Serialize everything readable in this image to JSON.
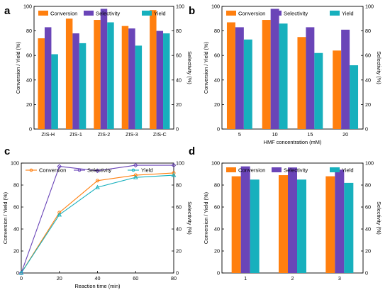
{
  "colors": {
    "conversion": "#ff7f0e",
    "selectivity": "#6a45b8",
    "yield": "#17b0bd"
  },
  "chart_data": [
    {
      "panel": "a",
      "type": "bar",
      "categories": [
        "ZIS-H",
        "ZIS-1",
        "ZIS-2",
        "ZIS-3",
        "ZIS-C"
      ],
      "series": [
        {
          "name": "Conversion",
          "values": [
            74,
            90,
            89,
            84,
            97
          ]
        },
        {
          "name": "Selectivity",
          "values": [
            83,
            78,
            98,
            82,
            80
          ]
        },
        {
          "name": "Yield",
          "values": [
            61,
            70,
            87,
            68,
            78
          ]
        }
      ],
      "xlabel": "",
      "ylabel": "Conversion / Yield (%)",
      "y2label": "Selectivity (%)",
      "ylim": [
        0,
        100
      ],
      "yticks": [
        0,
        20,
        40,
        60,
        80,
        100
      ],
      "legend": "top"
    },
    {
      "panel": "b",
      "type": "bar",
      "categories": [
        "5",
        "10",
        "15",
        "20"
      ],
      "series": [
        {
          "name": "Conversion",
          "values": [
            87,
            89,
            75,
            64
          ]
        },
        {
          "name": "Selectivity",
          "values": [
            83,
            98,
            83,
            81
          ]
        },
        {
          "name": "Yield",
          "values": [
            73,
            86,
            62,
            52
          ]
        }
      ],
      "xlabel": "HMF concentration (mM)",
      "ylabel": "Conversion / Yield (%)",
      "y2label": "Selectivity (%)",
      "ylim": [
        0,
        100
      ],
      "yticks": [
        0,
        20,
        40,
        60,
        80,
        100
      ],
      "legend": "top"
    },
    {
      "panel": "c",
      "type": "line",
      "x": [
        0,
        20,
        40,
        60,
        80
      ],
      "xticks": [
        0,
        20,
        40,
        60,
        80
      ],
      "xlim": [
        0,
        80
      ],
      "series": [
        {
          "name": "Conversion",
          "values": [
            0,
            55,
            84,
            89,
            91
          ]
        },
        {
          "name": "Selectivity",
          "values": [
            0,
            97,
            93,
            98,
            98
          ]
        },
        {
          "name": "Yield",
          "values": [
            0,
            53,
            78,
            87,
            89
          ]
        }
      ],
      "xlabel": "Reaction time (min)",
      "ylabel": "Conversion / Yield (%)",
      "y2label": "Selectivity (%)",
      "ylim": [
        0,
        100
      ],
      "yticks": [
        0,
        20,
        40,
        60,
        80,
        100
      ],
      "legend": "top-left"
    },
    {
      "panel": "d",
      "type": "bar",
      "categories": [
        "1",
        "2",
        "3"
      ],
      "series": [
        {
          "name": "Conversion",
          "values": [
            88,
            89,
            88
          ]
        },
        {
          "name": "Selectivity",
          "values": [
            97,
            96,
            94
          ]
        },
        {
          "name": "Yield",
          "values": [
            85,
            85,
            82
          ]
        }
      ],
      "xlabel": "",
      "ylabel": "Conversion / Yield (%)",
      "y2label": "Selectivity (%)",
      "ylim": [
        0,
        100
      ],
      "yticks": [
        0,
        20,
        40,
        60,
        80,
        100
      ],
      "legend": "top"
    }
  ]
}
